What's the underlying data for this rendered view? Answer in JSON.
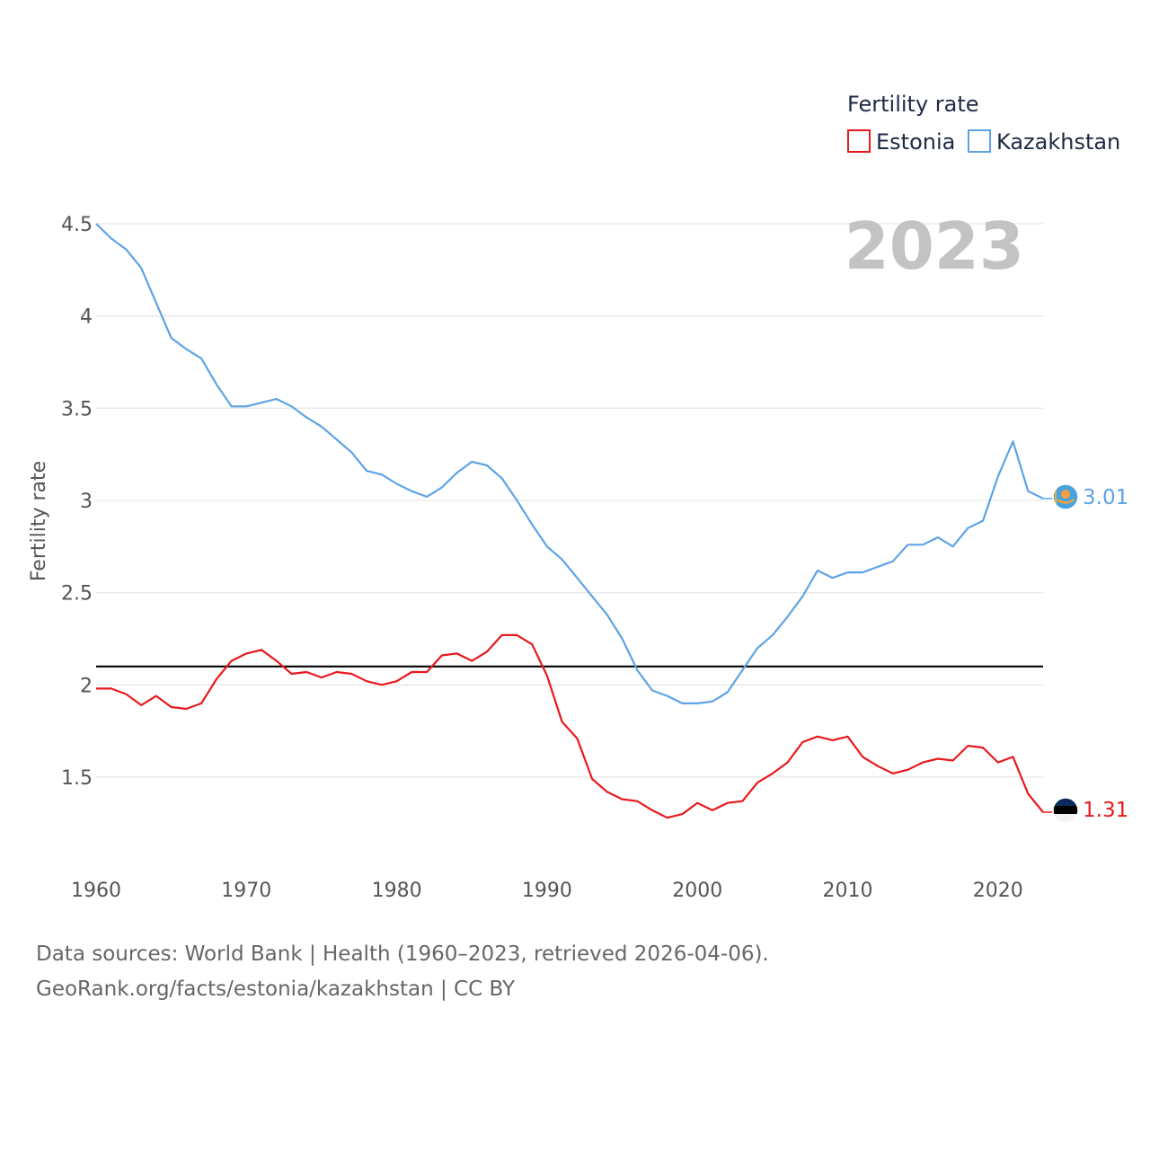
{
  "chart_data": {
    "type": "line",
    "title": "Fertility rate",
    "year_label": "2023",
    "ylabel": "Fertility rate",
    "xlabel": "",
    "xlim": [
      1960,
      2023
    ],
    "ylim": [
      1.15,
      4.5
    ],
    "yticks": [
      1.5,
      2,
      2.5,
      3,
      3.5,
      4,
      4.5
    ],
    "ytick_labels": [
      "1.5",
      "2",
      "2.5",
      "3",
      "3.5",
      "4",
      "4.5"
    ],
    "xticks": [
      1960,
      1970,
      1980,
      1990,
      2000,
      2010,
      2020
    ],
    "xtick_labels": [
      "1960",
      "1970",
      "1980",
      "1990",
      "2000",
      "2010",
      "2020"
    ],
    "grid": true,
    "legend_position": "top-right",
    "reference_line": {
      "value": 2.1,
      "color": "#000000"
    },
    "series": [
      {
        "name": "Estonia",
        "color": "#e8191c",
        "end_label": "1.31",
        "flag": "estonia-flag",
        "x_start": 1960,
        "values": [
          1.98,
          1.98,
          1.95,
          1.89,
          1.94,
          1.88,
          1.87,
          1.9,
          2.03,
          2.13,
          2.17,
          2.19,
          2.13,
          2.06,
          2.07,
          2.04,
          2.07,
          2.06,
          2.02,
          2.0,
          2.02,
          2.07,
          2.07,
          2.16,
          2.17,
          2.13,
          2.18,
          2.27,
          2.27,
          2.22,
          2.05,
          1.8,
          1.71,
          1.49,
          1.42,
          1.38,
          1.37,
          1.32,
          1.28,
          1.3,
          1.36,
          1.32,
          1.36,
          1.37,
          1.47,
          1.52,
          1.58,
          1.69,
          1.72,
          1.7,
          1.72,
          1.61,
          1.56,
          1.52,
          1.54,
          1.58,
          1.6,
          1.59,
          1.67,
          1.66,
          1.58,
          1.61,
          1.41,
          1.31
        ]
      },
      {
        "name": "Kazakhstan",
        "color": "#5ea3e6",
        "end_label": "3.01",
        "flag": "kazakhstan-flag",
        "x_start": 1960,
        "values": [
          4.5,
          4.42,
          4.36,
          4.26,
          4.07,
          3.88,
          3.82,
          3.77,
          3.63,
          3.51,
          3.51,
          3.53,
          3.55,
          3.51,
          3.45,
          3.4,
          3.33,
          3.26,
          3.16,
          3.14,
          3.09,
          3.05,
          3.02,
          3.07,
          3.15,
          3.21,
          3.19,
          3.12,
          3.0,
          2.87,
          2.75,
          2.68,
          2.58,
          2.48,
          2.38,
          2.25,
          2.08,
          1.97,
          1.94,
          1.9,
          1.9,
          1.91,
          1.96,
          2.08,
          2.2,
          2.27,
          2.37,
          2.48,
          2.62,
          2.58,
          2.61,
          2.61,
          2.64,
          2.67,
          2.76,
          2.76,
          2.8,
          2.75,
          2.85,
          2.89,
          3.13,
          3.32,
          3.05,
          3.01
        ]
      }
    ]
  },
  "footer": {
    "source_line": "Data sources: World Bank | Health (1960–2023, retrieved 2026-04-06).",
    "url_line": "GeoRank.org/facts/estonia/kazakhstan | CC BY"
  }
}
